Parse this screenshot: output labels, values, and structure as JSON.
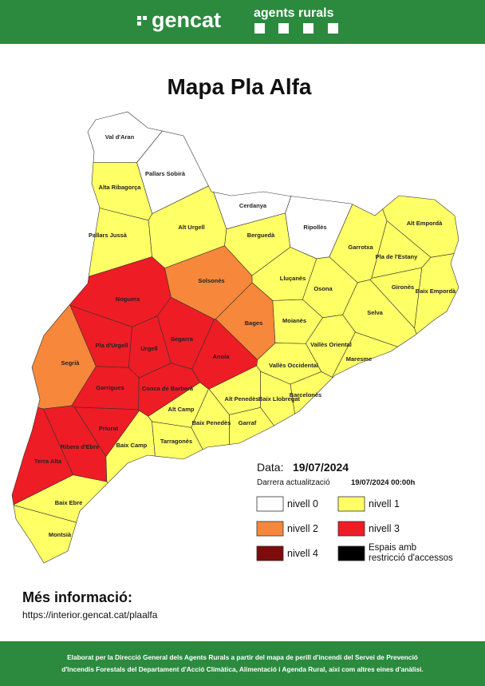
{
  "header": {
    "brand": "gencat",
    "unit": "agents rurals"
  },
  "title": "Mapa Pla Alfa",
  "date": {
    "label": "Data:",
    "value": "19/07/2024"
  },
  "update": {
    "label": "Darrera actualització",
    "value": "19/07/2024 00:00h"
  },
  "legend": [
    {
      "name": "nivell 0",
      "color": "#ffffff"
    },
    {
      "name": "nivell 1",
      "color": "#ffff66"
    },
    {
      "name": "nivell 2",
      "color": "#f7873a"
    },
    {
      "name": "nivell 3",
      "color": "#ee1c25"
    },
    {
      "name": "nivell 4",
      "color": "#7e0c0c"
    },
    {
      "name": "Espais amb restricció d'accessos",
      "color": "#000000"
    }
  ],
  "comarques": [
    {
      "name": "Val d'Aran",
      "level": 0
    },
    {
      "name": "Alta Ribagorça",
      "level": 1
    },
    {
      "name": "Pallars Sobirà",
      "level": 0
    },
    {
      "name": "Cerdanya",
      "level": 0
    },
    {
      "name": "Ripollès",
      "level": 0
    },
    {
      "name": "Alt Empordà",
      "level": 1
    },
    {
      "name": "Garrotxa",
      "level": 1
    },
    {
      "name": "Pla de l'Estany",
      "level": 1
    },
    {
      "name": "Gironès",
      "level": 1
    },
    {
      "name": "Baix Empordà",
      "level": 1
    },
    {
      "name": "Selva",
      "level": 1
    },
    {
      "name": "Osona",
      "level": 1
    },
    {
      "name": "Lluçanès",
      "level": 1
    },
    {
      "name": "Berguedà",
      "level": 1
    },
    {
      "name": "Solsonès",
      "level": 2
    },
    {
      "name": "Alt Urgell",
      "level": 1
    },
    {
      "name": "Pallars Jussà",
      "level": 1
    },
    {
      "name": "Noguera",
      "level": 3
    },
    {
      "name": "Segrià",
      "level": 2
    },
    {
      "name": "Pla d'Urgell",
      "level": 3
    },
    {
      "name": "Urgell",
      "level": 3
    },
    {
      "name": "Segarra",
      "level": 3
    },
    {
      "name": "Bages",
      "level": 2
    },
    {
      "name": "Moianès",
      "level": 1
    },
    {
      "name": "Anoia",
      "level": 3
    },
    {
      "name": "Vallès Oriental",
      "level": 1
    },
    {
      "name": "Vallès Occidental",
      "level": 1
    },
    {
      "name": "Maresme",
      "level": 1
    },
    {
      "name": "Garrigues",
      "level": 3
    },
    {
      "name": "Conca de Barberà",
      "level": 3
    },
    {
      "name": "Alt Penedès",
      "level": 1
    },
    {
      "name": "Baix Llobregat",
      "level": 1
    },
    {
      "name": "Barcelonès",
      "level": 1
    },
    {
      "name": "Alt Camp",
      "level": 1
    },
    {
      "name": "Baix Penedès",
      "level": 1
    },
    {
      "name": "Garraf",
      "level": 1
    },
    {
      "name": "Priorat",
      "level": 3
    },
    {
      "name": "Ribera d'Ebre",
      "level": 3
    },
    {
      "name": "Baix Camp",
      "level": 1
    },
    {
      "name": "Tarragonès",
      "level": 1
    },
    {
      "name": "Terra Alta",
      "level": 3
    },
    {
      "name": "Baix Ebre",
      "level": 1
    },
    {
      "name": "Montsià",
      "level": 1
    }
  ],
  "info": {
    "heading": "Més informació:",
    "url": "https://interior.gencat.cat/plaalfa"
  },
  "footer": [
    "Elaborat per la Direcció General dels Agents Rurals a partir del mapa de perill d'incendi del Servei de Prevenció",
    "d'Incendis Forestals del Departament d'Acció Climàtica, Alimentació i Agenda Rural, així com altres eines d'anàlisi."
  ]
}
